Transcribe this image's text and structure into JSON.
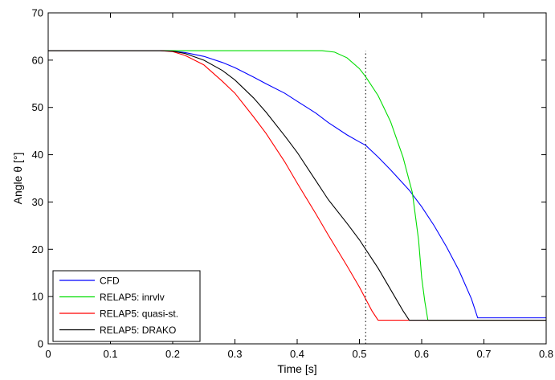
{
  "chart_data": {
    "type": "line",
    "title": "",
    "xlabel": "Time [s]",
    "ylabel": "Angle θ [°]",
    "xlim": [
      0,
      0.8
    ],
    "ylim": [
      0,
      70
    ],
    "x_ticks": [
      "0",
      "0.1",
      "0.2",
      "0.3",
      "0.4",
      "0.5",
      "0.6",
      "0.7",
      "0.8"
    ],
    "y_ticks": [
      "0",
      "10",
      "20",
      "30",
      "40",
      "50",
      "60",
      "70"
    ],
    "grid": false,
    "legend_position": "bottom-left",
    "annotations": [
      {
        "type": "vertical-dotted-line",
        "x": 0.51,
        "y_range": [
          0,
          62
        ]
      }
    ],
    "series": [
      {
        "name": "CFD",
        "color": "#0000ff",
        "points": [
          [
            0,
            62
          ],
          [
            0.16,
            62
          ],
          [
            0.18,
            62
          ],
          [
            0.2,
            61.9
          ],
          [
            0.22,
            61.6
          ],
          [
            0.25,
            60.8
          ],
          [
            0.28,
            59.5
          ],
          [
            0.3,
            58.4
          ],
          [
            0.33,
            56.4
          ],
          [
            0.35,
            55.0
          ],
          [
            0.38,
            53.0
          ],
          [
            0.4,
            51.3
          ],
          [
            0.43,
            48.8
          ],
          [
            0.45,
            46.8
          ],
          [
            0.48,
            44.2
          ],
          [
            0.5,
            42.7
          ],
          [
            0.51,
            42.0
          ],
          [
            0.53,
            39.5
          ],
          [
            0.55,
            36.8
          ],
          [
            0.58,
            32.5
          ],
          [
            0.6,
            29.0
          ],
          [
            0.62,
            25.0
          ],
          [
            0.64,
            20.5
          ],
          [
            0.66,
            15.5
          ],
          [
            0.68,
            9.5
          ],
          [
            0.69,
            5.5
          ],
          [
            0.8,
            5.5
          ]
        ]
      },
      {
        "name": "RELAP5: inrvlv",
        "color": "#00dd00",
        "points": [
          [
            0,
            62
          ],
          [
            0.2,
            62
          ],
          [
            0.3,
            62
          ],
          [
            0.4,
            62
          ],
          [
            0.44,
            62
          ],
          [
            0.46,
            61.7
          ],
          [
            0.48,
            60.5
          ],
          [
            0.5,
            58.2
          ],
          [
            0.51,
            56.5
          ],
          [
            0.53,
            52.5
          ],
          [
            0.55,
            47.0
          ],
          [
            0.57,
            39.5
          ],
          [
            0.585,
            32.0
          ],
          [
            0.595,
            22.0
          ],
          [
            0.6,
            14.0
          ],
          [
            0.605,
            9.0
          ],
          [
            0.61,
            5.0
          ],
          [
            0.8,
            5.0
          ]
        ]
      },
      {
        "name": "RELAP5: quasi-st.",
        "color": "#ff0000",
        "points": [
          [
            0,
            62
          ],
          [
            0.18,
            62
          ],
          [
            0.2,
            61.8
          ],
          [
            0.22,
            61.0
          ],
          [
            0.25,
            59.0
          ],
          [
            0.28,
            55.5
          ],
          [
            0.3,
            53.0
          ],
          [
            0.33,
            48.0
          ],
          [
            0.35,
            44.5
          ],
          [
            0.38,
            38.5
          ],
          [
            0.4,
            34.0
          ],
          [
            0.43,
            27.5
          ],
          [
            0.45,
            23.0
          ],
          [
            0.48,
            16.5
          ],
          [
            0.5,
            12.0
          ],
          [
            0.52,
            7.0
          ],
          [
            0.53,
            5.0
          ],
          [
            0.8,
            5.0
          ]
        ]
      },
      {
        "name": "RELAP5: DRAKO",
        "color": "#000000",
        "points": [
          [
            0,
            62
          ],
          [
            0.18,
            62
          ],
          [
            0.2,
            61.9
          ],
          [
            0.22,
            61.4
          ],
          [
            0.25,
            60.0
          ],
          [
            0.28,
            57.8
          ],
          [
            0.3,
            55.8
          ],
          [
            0.33,
            52.0
          ],
          [
            0.35,
            49.0
          ],
          [
            0.38,
            44.0
          ],
          [
            0.4,
            40.5
          ],
          [
            0.43,
            34.5
          ],
          [
            0.45,
            30.5
          ],
          [
            0.48,
            25.5
          ],
          [
            0.5,
            22.0
          ],
          [
            0.51,
            20.0
          ],
          [
            0.53,
            16.0
          ],
          [
            0.55,
            11.5
          ],
          [
            0.57,
            7.0
          ],
          [
            0.58,
            5.0
          ],
          [
            0.8,
            5.0
          ]
        ]
      }
    ]
  }
}
